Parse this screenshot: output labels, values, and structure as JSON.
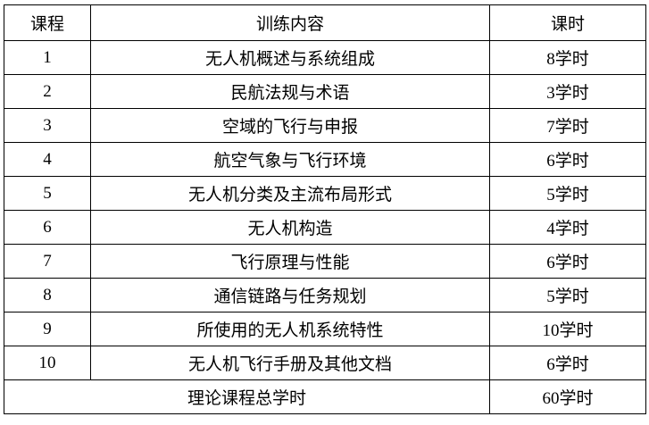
{
  "table": {
    "headers": [
      "课程",
      "训练内容",
      "课时"
    ],
    "rows": [
      {
        "no": "1",
        "content": "无人机概述与系统组成",
        "hours": "8学时"
      },
      {
        "no": "2",
        "content": "民航法规与术语",
        "hours": "3学时"
      },
      {
        "no": "3",
        "content": "空域的飞行与申报",
        "hours": "7学时"
      },
      {
        "no": "4",
        "content": "航空气象与飞行环境",
        "hours": "6学时"
      },
      {
        "no": "5",
        "content": "无人机分类及主流布局形式",
        "hours": "5学时"
      },
      {
        "no": "6",
        "content": "无人机构造",
        "hours": "4学时"
      },
      {
        "no": "7",
        "content": "飞行原理与性能",
        "hours": "6学时"
      },
      {
        "no": "8",
        "content": "通信链路与任务规划",
        "hours": "5学时"
      },
      {
        "no": "9",
        "content": "所使用的无人机系统特性",
        "hours": "10学时"
      },
      {
        "no": "10",
        "content": "无人机飞行手册及其他文档",
        "hours": "6学时"
      }
    ],
    "total": {
      "label": "理论课程总学时",
      "hours": "60学时"
    }
  }
}
